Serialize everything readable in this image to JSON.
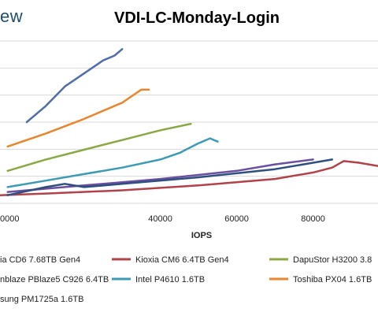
{
  "brand": "ew",
  "chart_data": {
    "type": "line",
    "title": "VDI-LC-Monday-Login",
    "xlabel": "IOPS",
    "ylabel": "",
    "grid": true,
    "legend": "bottom",
    "xlim": [
      -2000,
      97000
    ],
    "x_ticks": [
      0,
      40000,
      60000,
      80000
    ],
    "x_tick_labels": [
      "0000",
      "40000",
      "60000",
      "80000"
    ],
    "series": [
      {
        "name": "ia CD6 7.68TB Gen4",
        "color": "#4f6ea8",
        "points": [
          [
            5000,
            0.5
          ],
          [
            10000,
            0.6
          ],
          [
            15000,
            0.72
          ],
          [
            20000,
            0.8
          ],
          [
            25000,
            0.88
          ],
          [
            28000,
            0.91
          ],
          [
            30000,
            0.95
          ]
        ]
      },
      {
        "name": "Kioxia CM6 6.4TB Gen4",
        "color": "#b0434a",
        "points": [
          [
            -2000,
            0.05
          ],
          [
            10000,
            0.06
          ],
          [
            30000,
            0.08
          ],
          [
            50000,
            0.11
          ],
          [
            70000,
            0.15
          ],
          [
            80000,
            0.19
          ],
          [
            85000,
            0.22
          ],
          [
            88000,
            0.26
          ],
          [
            92000,
            0.25
          ],
          [
            97000,
            0.23
          ]
        ]
      },
      {
        "name": "DapuStor H3200 3.8",
        "color": "#8aa845",
        "points": [
          [
            0,
            0.2
          ],
          [
            10000,
            0.27
          ],
          [
            20000,
            0.33
          ],
          [
            30000,
            0.39
          ],
          [
            40000,
            0.45
          ],
          [
            48000,
            0.49
          ]
        ]
      },
      {
        "name": "nblaze PBlaze5 C926 6.4TB",
        "color": "#6b4fa0",
        "points": [
          [
            0,
            0.07
          ],
          [
            20000,
            0.11
          ],
          [
            40000,
            0.15
          ],
          [
            60000,
            0.2
          ],
          [
            70000,
            0.24
          ],
          [
            80000,
            0.27
          ]
        ]
      },
      {
        "name": "Intel P4610 1.6TB",
        "color": "#3e9ab5",
        "points": [
          [
            0,
            0.1
          ],
          [
            10000,
            0.14
          ],
          [
            20000,
            0.18
          ],
          [
            30000,
            0.22
          ],
          [
            40000,
            0.27
          ],
          [
            45000,
            0.31
          ],
          [
            50000,
            0.37
          ],
          [
            53000,
            0.4
          ],
          [
            55000,
            0.38
          ]
        ]
      },
      {
        "name": "Toshiba PX04 1.6TB",
        "color": "#e6862e",
        "points": [
          [
            0,
            0.35
          ],
          [
            10000,
            0.43
          ],
          [
            20000,
            0.52
          ],
          [
            30000,
            0.62
          ],
          [
            35000,
            0.7
          ],
          [
            37000,
            0.7
          ]
        ]
      },
      {
        "name": "sung PM1725a 1.6TB",
        "color": "#2f4f7f",
        "points": [
          [
            0,
            0.05
          ],
          [
            10000,
            0.1
          ],
          [
            15000,
            0.12
          ],
          [
            20000,
            0.1
          ],
          [
            30000,
            0.12
          ],
          [
            50000,
            0.16
          ],
          [
            70000,
            0.21
          ],
          [
            80000,
            0.25
          ],
          [
            85000,
            0.27
          ]
        ]
      }
    ]
  }
}
